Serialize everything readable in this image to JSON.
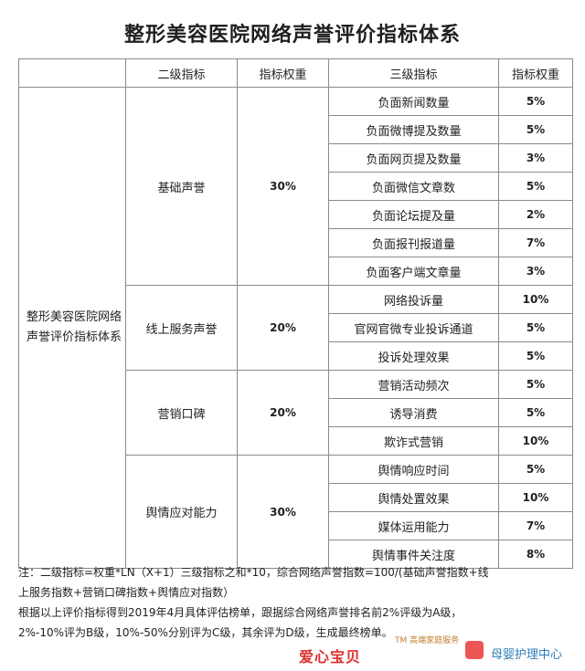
{
  "title": "整形美容医院网络声誉评价指标体系",
  "table": {
    "headers": [
      "",
      "二级指标",
      "指标权重",
      "三级指标",
      "指标权重"
    ],
    "first_col": "整形美容医院网络声誉评价指标体系",
    "groups": [
      {
        "name": "基础声誉",
        "weight": "30%",
        "items": [
          {
            "name": "负面新闻数量",
            "weight": "5%"
          },
          {
            "name": "负面微博提及数量",
            "weight": "5%"
          },
          {
            "name": "负面网页提及数量",
            "weight": "3%"
          },
          {
            "name": "负面微信文章数",
            "weight": "5%"
          },
          {
            "name": "负面论坛提及量",
            "weight": "2%"
          },
          {
            "name": "负面报刊报道量",
            "weight": "7%"
          },
          {
            "name": "负面客户端文章量",
            "weight": "3%"
          }
        ]
      },
      {
        "name": "线上服务声誉",
        "weight": "20%",
        "items": [
          {
            "name": "网络投诉量",
            "weight": "10%"
          },
          {
            "name": "官网官微专业投诉通道",
            "weight": "5%"
          },
          {
            "name": "投诉处理效果",
            "weight": "5%"
          }
        ]
      },
      {
        "name": "营销口碑",
        "weight": "20%",
        "items": [
          {
            "name": "营销活动频次",
            "weight": "5%"
          },
          {
            "name": "诱导消费",
            "weight": "5%"
          },
          {
            "name": "欺诈式营销",
            "weight": "10%"
          }
        ]
      },
      {
        "name": "舆情应对能力",
        "weight": "30%",
        "items": [
          {
            "name": "舆情响应时间",
            "weight": "5%"
          },
          {
            "name": "舆情处置效果",
            "weight": "10%"
          },
          {
            "name": "媒体运用能力",
            "weight": "7%"
          },
          {
            "name": "舆情事件关注度",
            "weight": "8%"
          }
        ]
      }
    ]
  },
  "notes": {
    "line1": "注：二级指标=权重*LN（X+1）三级指标之和*10，综合网络声誉指数=100/(基础声誉指数+线",
    "line2": "上服务指数+营销口碑指数+舆情应对指数）",
    "line3": "根据以上评价指标得到2019年4月具体评估榜单，跟据综合网络声誉排名前2%评级为A级，",
    "line4": "2%-10%评为B级，10%-50%分别评为C级，其余评为D级，生成最终榜单。"
  },
  "watermark": {
    "brand": "爱心宝贝",
    "tm": "TM 高端家庭服务",
    "category": "母婴护理中心",
    "colors": {
      "brand": "#e03030",
      "category": "#2d7db8"
    }
  }
}
